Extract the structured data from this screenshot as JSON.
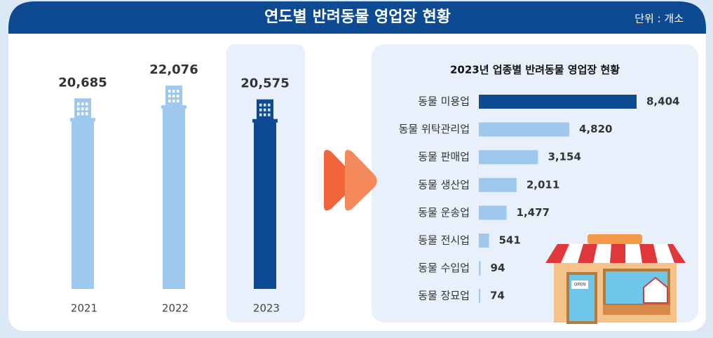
{
  "header": {
    "title": "연도별 반려동물 영업장 현황",
    "unit": "단위 : 개소"
  },
  "chart_data": [
    {
      "type": "bar",
      "categories": [
        "2021",
        "2022",
        "2023"
      ],
      "values": [
        20685,
        22076,
        20575
      ],
      "value_labels": [
        "20,685",
        "22,076",
        "20,575"
      ],
      "colors": [
        "#9ec8ee",
        "#9ec8ee",
        "#0d4a92"
      ]
    },
    {
      "type": "hbar",
      "title": "2023년 업종별 반려동물 영업장 현황",
      "categories": [
        "동물 미용업",
        "동물 위탁관리업",
        "동물 판매업",
        "동물 생산업",
        "동물 운송업",
        "동물 전시업",
        "동물 수입업",
        "동물 장묘업"
      ],
      "values": [
        8404,
        4820,
        3154,
        2011,
        1477,
        541,
        94,
        74
      ],
      "value_labels": [
        "8,404",
        "4,820",
        "3,154",
        "2,011",
        "1,477",
        "541",
        "94",
        "74"
      ],
      "colors": [
        "#0d4a92",
        "#9ec8ee",
        "#9ec8ee",
        "#9ec8ee",
        "#9ec8ee",
        "#9ec8ee",
        "#9ec8ee",
        "#9ec8ee"
      ]
    }
  ]
}
